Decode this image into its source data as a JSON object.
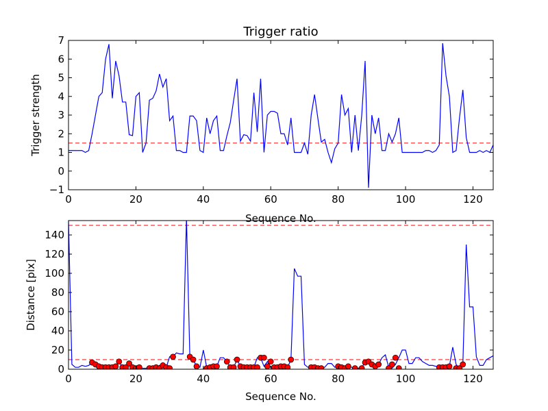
{
  "chart_data": [
    {
      "type": "line",
      "title": "Trigger ratio",
      "xlabel": "Sequence No.",
      "ylabel": "Trigger strength",
      "xlim": [
        0,
        126
      ],
      "ylim": [
        -1,
        7
      ],
      "xticks": [
        0,
        20,
        40,
        60,
        80,
        100,
        120
      ],
      "xtick_labels": [
        "0",
        "20",
        "40",
        "60",
        "80",
        "100",
        "120"
      ],
      "yticks": [
        -1,
        0,
        1,
        2,
        3,
        4,
        5,
        6,
        7
      ],
      "ytick_labels": [
        "−1",
        "0",
        "1",
        "2",
        "3",
        "4",
        "5",
        "6",
        "7"
      ],
      "hlines": [
        {
          "y": 1.5,
          "color": "#ff0000",
          "style": "dashed"
        }
      ],
      "series": [
        {
          "color": "#0000ff",
          "x": [
            0,
            1,
            2,
            3,
            4,
            5,
            6,
            7,
            8,
            9,
            10,
            11,
            12,
            13,
            14,
            15,
            16,
            17,
            18,
            19,
            20,
            21,
            22,
            23,
            24,
            25,
            26,
            27,
            28,
            29,
            30,
            31,
            32,
            33,
            34,
            35,
            36,
            37,
            38,
            39,
            40,
            41,
            42,
            43,
            44,
            45,
            46,
            47,
            48,
            49,
            50,
            51,
            52,
            53,
            54,
            55,
            56,
            57,
            58,
            59,
            60,
            61,
            62,
            63,
            64,
            65,
            66,
            67,
            68,
            69,
            70,
            71,
            72,
            73,
            74,
            75,
            76,
            77,
            78,
            79,
            80,
            81,
            82,
            83,
            84,
            85,
            86,
            87,
            88,
            89,
            90,
            91,
            92,
            93,
            94,
            95,
            96,
            97,
            98,
            99,
            100,
            101,
            102,
            103,
            104,
            105,
            106,
            107,
            108,
            109,
            110,
            111,
            112,
            113,
            114,
            115,
            116,
            117,
            118,
            119,
            120,
            121,
            122,
            123,
            124,
            125,
            126
          ],
          "y": [
            1.1,
            1.1,
            1.1,
            1.1,
            1.1,
            1.0,
            1.1,
            2.0,
            3.0,
            4.0,
            4.2,
            6.0,
            6.8,
            3.9,
            5.9,
            5.1,
            3.7,
            3.7,
            1.95,
            1.9,
            4.0,
            4.2,
            1.0,
            1.5,
            3.8,
            3.9,
            4.3,
            5.2,
            4.5,
            4.95,
            2.7,
            2.95,
            1.1,
            1.1,
            1.0,
            1.0,
            2.95,
            2.95,
            2.7,
            1.1,
            1.0,
            2.85,
            2.0,
            2.7,
            2.95,
            1.1,
            1.1,
            1.9,
            2.6,
            3.8,
            4.95,
            1.6,
            1.95,
            1.9,
            1.6,
            4.2,
            2.1,
            4.95,
            1.0,
            3.0,
            3.2,
            3.2,
            3.1,
            2.0,
            2.0,
            1.4,
            2.85,
            1.0,
            1.0,
            1.0,
            1.5,
            0.9,
            3.0,
            4.1,
            2.8,
            1.55,
            1.7,
            1.0,
            0.45,
            1.2,
            1.5,
            4.1,
            3.0,
            3.35,
            1.0,
            3.0,
            1.1,
            3.0,
            5.9,
            -0.9,
            3.0,
            2.0,
            2.85,
            1.1,
            1.1,
            2.0,
            1.55,
            2.0,
            2.85,
            1.0,
            1.0,
            1.0,
            1.0,
            1.0,
            1.0,
            1.0,
            1.1,
            1.1,
            1.0,
            1.1,
            1.4,
            6.85,
            5.1,
            4.0,
            1.0,
            1.1,
            2.85,
            4.35,
            1.8,
            1.0,
            1.0,
            1.0,
            1.1,
            1.0,
            1.1,
            1.0,
            1.4
          ]
        }
      ]
    },
    {
      "type": "line",
      "title": "",
      "xlabel": "Sequence No.",
      "ylabel": "Distance [pix]",
      "xlim": [
        0,
        126
      ],
      "ylim": [
        0,
        155
      ],
      "xticks": [
        0,
        20,
        40,
        60,
        80,
        100,
        120
      ],
      "xtick_labels": [
        "0",
        "20",
        "40",
        "60",
        "80",
        "100",
        "120"
      ],
      "yticks": [
        0,
        20,
        40,
        60,
        80,
        100,
        120,
        140
      ],
      "ytick_labels": [
        "0",
        "20",
        "40",
        "60",
        "80",
        "100",
        "120",
        "140"
      ],
      "hlines": [
        {
          "y": 150,
          "color": "#ff0000",
          "style": "dashed"
        },
        {
          "y": 10,
          "color": "#ff0000",
          "style": "dashed"
        }
      ],
      "series": [
        {
          "color": "#0000ff",
          "x": [
            0,
            1,
            2,
            3,
            4,
            5,
            6,
            7,
            8,
            9,
            10,
            11,
            12,
            13,
            14,
            15,
            16,
            17,
            18,
            19,
            20,
            21,
            22,
            23,
            24,
            25,
            26,
            27,
            28,
            29,
            30,
            31,
            32,
            33,
            34,
            35,
            36,
            37,
            38,
            39,
            40,
            41,
            42,
            43,
            44,
            45,
            46,
            47,
            48,
            49,
            50,
            51,
            52,
            53,
            54,
            55,
            56,
            57,
            58,
            59,
            60,
            61,
            62,
            63,
            64,
            65,
            66,
            67,
            68,
            69,
            70,
            71,
            72,
            73,
            74,
            75,
            76,
            77,
            78,
            79,
            80,
            81,
            82,
            83,
            84,
            85,
            86,
            87,
            88,
            89,
            90,
            91,
            92,
            93,
            94,
            95,
            96,
            97,
            98,
            99,
            100,
            101,
            102,
            103,
            104,
            105,
            106,
            107,
            108,
            109,
            110,
            111,
            112,
            113,
            114,
            115,
            116,
            117,
            118,
            119,
            120,
            121,
            122,
            123,
            124,
            125,
            126
          ],
          "y": [
            155,
            5,
            2,
            2,
            4,
            3,
            4,
            7,
            5,
            3,
            2,
            2,
            2,
            2,
            3,
            8,
            2,
            2,
            6,
            2,
            1,
            2,
            1,
            1,
            2,
            1,
            1,
            4,
            2,
            2,
            13,
            13,
            17,
            16,
            16,
            158,
            13,
            10,
            3,
            2,
            20,
            2,
            1,
            2,
            3,
            12,
            12,
            8,
            2,
            2,
            10,
            3,
            2,
            2,
            2,
            2,
            12,
            12,
            3,
            8,
            2,
            2,
            3,
            3,
            5,
            2,
            10,
            105,
            97,
            97,
            5,
            2,
            2,
            1,
            1,
            2,
            2,
            6,
            6,
            2,
            3,
            2,
            1,
            3,
            2,
            1,
            1,
            2,
            7,
            8,
            5,
            3,
            5,
            12,
            15,
            2,
            1,
            5,
            12,
            20,
            20,
            6,
            6,
            12,
            12,
            8,
            6,
            4,
            4,
            3,
            2,
            2,
            2,
            3,
            23,
            5,
            1,
            5,
            130,
            65,
            65,
            13,
            4,
            4,
            10,
            12,
            14
          ]
        }
      ],
      "markers": {
        "color": "#ff0000",
        "x": [
          7,
          8,
          9,
          10,
          11,
          12,
          13,
          14,
          15,
          16,
          17,
          18,
          19,
          20,
          21,
          24,
          25,
          26,
          27,
          28,
          29,
          30,
          31,
          36,
          37,
          38,
          41,
          42,
          43,
          44,
          47,
          48,
          49,
          50,
          51,
          52,
          53,
          54,
          55,
          56,
          57,
          58,
          59,
          60,
          61,
          62,
          63,
          64,
          65,
          66,
          72,
          73,
          74,
          75,
          80,
          81,
          82,
          83,
          85,
          87,
          88,
          89,
          90,
          91,
          92,
          95,
          96,
          97,
          98,
          110,
          111,
          112,
          113,
          115,
          116,
          117
        ],
        "y": [
          7,
          5,
          3,
          2,
          2,
          2,
          2,
          3,
          8,
          2,
          2,
          6,
          2,
          1,
          2,
          1,
          1,
          2,
          1,
          4,
          2,
          1,
          13,
          13,
          10,
          3,
          1,
          2,
          3,
          3,
          8,
          2,
          2,
          10,
          3,
          2,
          2,
          2,
          2,
          2,
          12,
          12,
          3,
          8,
          2,
          2,
          3,
          3,
          2,
          10,
          2,
          2,
          1,
          1,
          3,
          2,
          1,
          3,
          1,
          1,
          7,
          8,
          5,
          3,
          5,
          1,
          5,
          12,
          1,
          2,
          2,
          2,
          3,
          1,
          1,
          5
        ]
      }
    }
  ]
}
